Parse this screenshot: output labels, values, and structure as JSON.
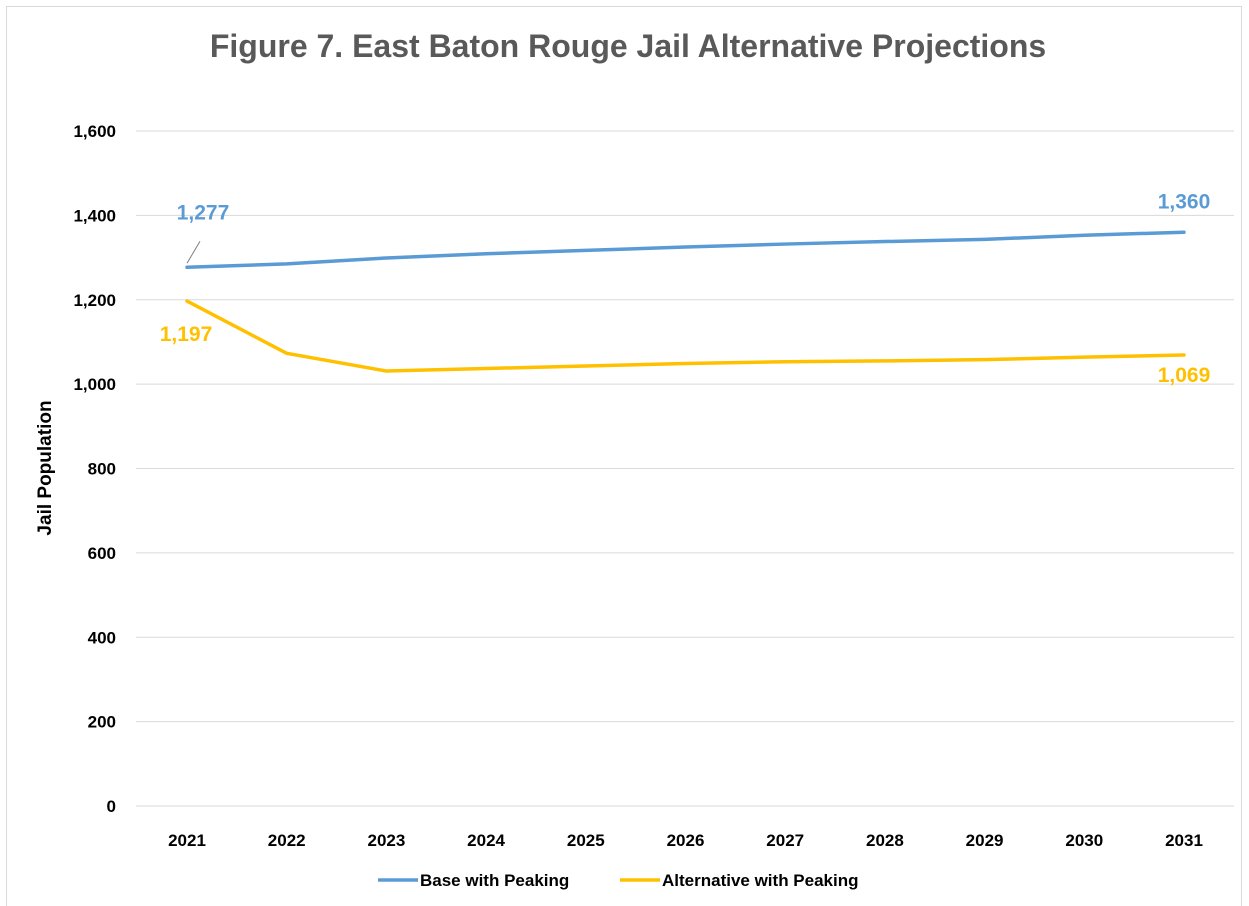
{
  "chart_data": {
    "type": "line",
    "title": "Figure 7. East Baton Rouge Jail Alternative Projections",
    "ylabel": "Jail Population",
    "xlabel": "",
    "categories": [
      "2021",
      "2022",
      "2023",
      "2024",
      "2025",
      "2026",
      "2027",
      "2028",
      "2029",
      "2030",
      "2031"
    ],
    "ylim": [
      0,
      1600
    ],
    "yticks": [
      0,
      200,
      400,
      600,
      800,
      1000,
      1200,
      1400,
      1600
    ],
    "ytick_labels": [
      "0",
      "200",
      "400",
      "600",
      "800",
      "1,000",
      "1,200",
      "1,400",
      "1,600"
    ],
    "grid": true,
    "legend_position": "bottom",
    "series": [
      {
        "name": "Base with Peaking",
        "color": "#5b9bd5",
        "values": [
          1277,
          1285,
          1299,
          1309,
          1317,
          1325,
          1332,
          1338,
          1343,
          1353,
          1360
        ],
        "labels": [
          {
            "index": 0,
            "text": "1,277"
          },
          {
            "index": 10,
            "text": "1,360"
          }
        ]
      },
      {
        "name": "Alternative with Peaking",
        "color": "#ffc000",
        "values": [
          1197,
          1073,
          1031,
          1037,
          1043,
          1049,
          1053,
          1055,
          1058,
          1064,
          1069
        ],
        "labels": [
          {
            "index": 0,
            "text": "1,197"
          },
          {
            "index": 10,
            "text": "1,069"
          }
        ]
      }
    ]
  }
}
